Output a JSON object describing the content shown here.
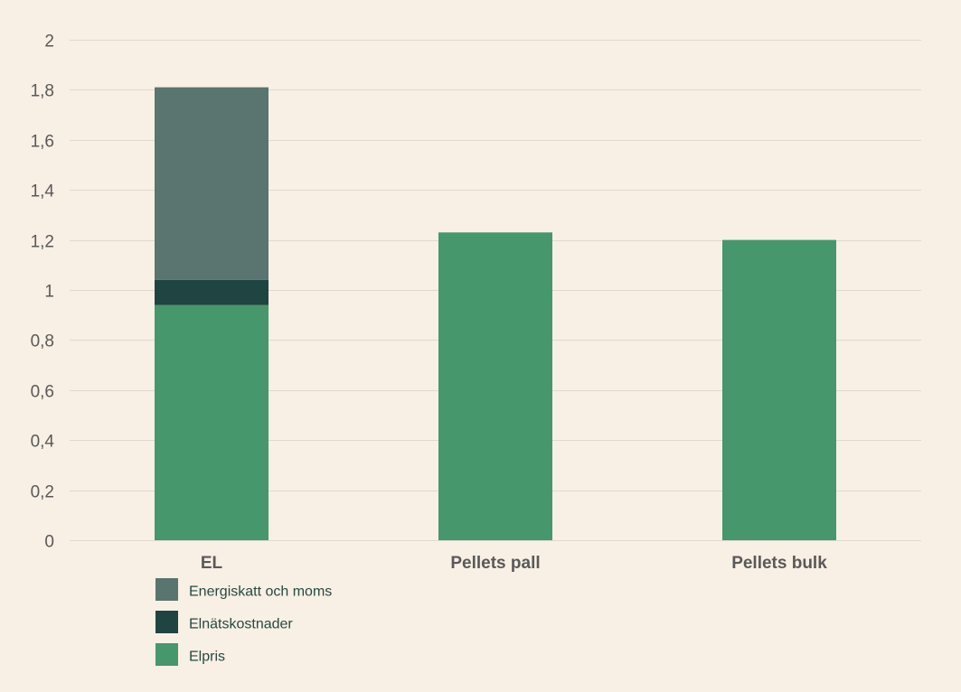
{
  "chart_data": {
    "type": "bar",
    "stacked": true,
    "title": "",
    "xlabel": "",
    "ylabel": "",
    "ylim": [
      0,
      2
    ],
    "yticks": [
      0,
      0.2,
      0.4,
      0.6,
      0.8,
      1,
      1.2,
      1.4,
      1.6,
      1.8,
      2
    ],
    "ytick_labels": [
      "0",
      "0,2",
      "0,4",
      "0,6",
      "0,8",
      "1",
      "1,2",
      "1,4",
      "1,6",
      "1,8",
      "2"
    ],
    "grid": true,
    "categories": [
      "EL",
      "Pellets pall",
      "Pellets bulk"
    ],
    "series": [
      {
        "name": "Elpris",
        "color": "#46976c",
        "values": [
          0.94,
          1.23,
          1.2
        ]
      },
      {
        "name": "Elnätskostnader",
        "color": "#204441",
        "values": [
          0.1,
          0,
          0
        ]
      },
      {
        "name": "Energiskatt och moms",
        "color": "#5a746f",
        "values": [
          0.77,
          0,
          0
        ]
      }
    ],
    "legend": {
      "position": "bottom-left",
      "order": [
        "Energiskatt och moms",
        "Elnätskostnader",
        "Elpris"
      ]
    }
  },
  "colors": {
    "background": "#f8efe5",
    "gridline": "#e0d9d0",
    "axis_text": "#595959",
    "legend_text": "#264a40"
  }
}
